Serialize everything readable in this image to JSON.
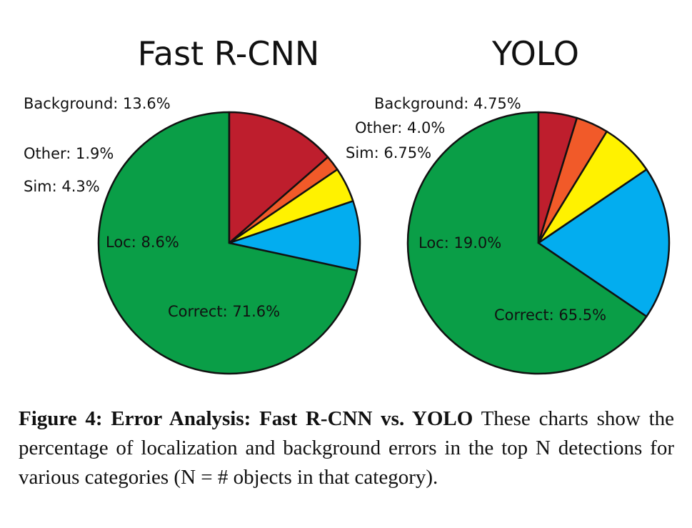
{
  "chart_data": [
    {
      "type": "pie",
      "title": "Fast R-CNN",
      "slices": [
        {
          "label": "Correct",
          "value": 71.6,
          "text": "Correct: 71.6%",
          "color": "#0a9e47"
        },
        {
          "label": "Loc",
          "value": 8.6,
          "text": "Loc: 8.6%",
          "color": "#03adef"
        },
        {
          "label": "Sim",
          "value": 4.3,
          "text": "Sim: 4.3%",
          "color": "#fff200"
        },
        {
          "label": "Other",
          "value": 1.9,
          "text": "Other: 1.9%",
          "color": "#f15a29"
        },
        {
          "label": "Background",
          "value": 13.6,
          "text": "Background: 13.6%",
          "color": "#be1e2d"
        }
      ]
    },
    {
      "type": "pie",
      "title": "YOLO",
      "slices": [
        {
          "label": "Correct",
          "value": 65.5,
          "text": "Correct: 65.5%",
          "color": "#0a9e47"
        },
        {
          "label": "Loc",
          "value": 19.0,
          "text": "Loc: 19.0%",
          "color": "#03adef"
        },
        {
          "label": "Sim",
          "value": 6.75,
          "text": "Sim: 6.75%",
          "color": "#fff200"
        },
        {
          "label": "Other",
          "value": 4.0,
          "text": "Other: 4.0%",
          "color": "#f15a29"
        },
        {
          "label": "Background",
          "value": 4.75,
          "text": "Background: 4.75%",
          "color": "#be1e2d"
        }
      ]
    }
  ],
  "caption": {
    "label": "Figure 4:",
    "bold_title": "Error Analysis: Fast R-CNN vs. YOLO",
    "text": "These charts show the percentage of localization and background errors in the top N detections for various categories (N = # objects in that category)."
  }
}
